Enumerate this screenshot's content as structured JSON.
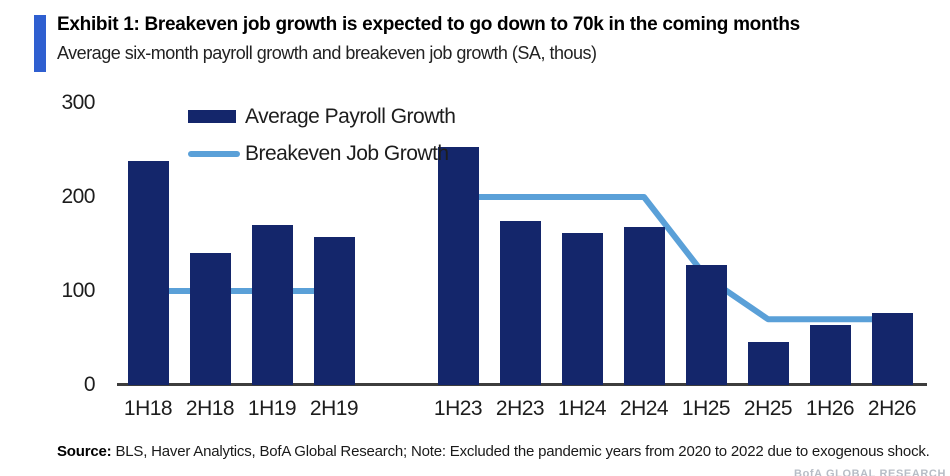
{
  "header": {
    "exhibit_title": "Exhibit 1: Breakeven job growth is expected to go down to 70k in the coming months",
    "subtitle": "Average six-month payroll growth and breakeven job growth (SA, thous)"
  },
  "chart_data": {
    "type": "bar",
    "title": "Exhibit 1: Breakeven job growth is expected to go down to 70k in the coming months",
    "subtitle": "Average six-month payroll growth and breakeven job growth (SA, thous)",
    "categories": [
      "1H18",
      "2H18",
      "1H19",
      "2H19",
      "1H23",
      "2H23",
      "1H24",
      "2H24",
      "1H25",
      "2H25",
      "1H26",
      "2H26"
    ],
    "gap_after_index": 3,
    "ylim": [
      0,
      300
    ],
    "yticks": [
      0,
      100,
      200,
      300
    ],
    "grid": false,
    "legend_position": "top-left inside plot",
    "series": [
      {
        "name": "Average Payroll Growth",
        "type": "bar",
        "color": "#14266B",
        "values": [
          238,
          140,
          170,
          157,
          253,
          174,
          162,
          168,
          128,
          46,
          64,
          77
        ]
      },
      {
        "name": "Breakeven Job Growth",
        "type": "line",
        "color": "#5AA0D8",
        "values": [
          100,
          100,
          100,
          100,
          200,
          200,
          200,
          200,
          115,
          70,
          70,
          70
        ]
      }
    ]
  },
  "footer": {
    "source_label": "Source:",
    "source_text": "BLS, Haver Analytics, BofA Global Research; Note: Excluded the pandemic years from 2020 to 2022 due to exogenous shock.",
    "bottom_right_watermark": "BofA GLOBAL RESEARCH"
  },
  "colors": {
    "bar_navy": "#14266B",
    "line_blue": "#5AA0D8",
    "accent_blue": "#2F5FD0",
    "axis": "#3D3D3D"
  }
}
